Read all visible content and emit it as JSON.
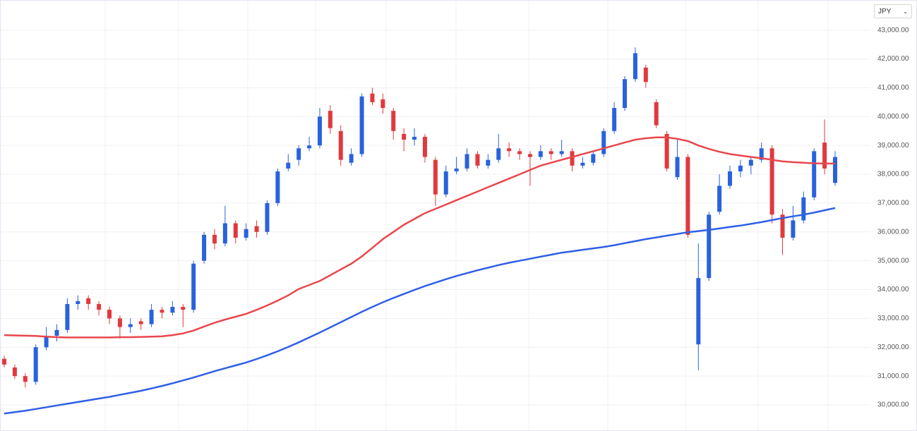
{
  "chart_data": {
    "type": "candlestick",
    "currency": "JPY",
    "up_color": "#2a62dc",
    "down_color": "#e0393e",
    "open": [
      31600,
      31300,
      31000,
      30800,
      32000,
      32400,
      32600,
      33500,
      33700,
      33500,
      33300,
      33000,
      32700,
      32900,
      32800,
      33300,
      33200,
      33400,
      33300,
      35000,
      35900,
      35600,
      36300,
      35800,
      36200,
      36000,
      37000,
      38200,
      38500,
      38900,
      39000,
      40200,
      39500,
      38400,
      38700,
      40800,
      40600,
      40200,
      39400,
      39200,
      39300,
      38500,
      37300,
      38100,
      38200,
      38700,
      38300,
      38500,
      38900,
      38800,
      38700,
      38600,
      38800,
      38700,
      38800,
      38300,
      38400,
      38700,
      39500,
      40300,
      41300,
      41700,
      40500,
      39400,
      37900,
      38600,
      32100,
      34400,
      36700,
      37600,
      38100,
      38300,
      38500,
      38900,
      36600,
      35800,
      36400,
      37200,
      39100,
      37700
    ],
    "high": [
      31700,
      31400,
      31100,
      32100,
      32700,
      32800,
      33700,
      33800,
      33800,
      33600,
      33400,
      33100,
      33000,
      33000,
      33500,
      33400,
      33600,
      33500,
      35000,
      36000,
      36100,
      36900,
      36400,
      36300,
      36400,
      37100,
      38200,
      38700,
      39000,
      39300,
      40300,
      40400,
      39700,
      38900,
      40800,
      41000,
      40800,
      40300,
      39600,
      39600,
      39400,
      38600,
      38300,
      38600,
      38900,
      38800,
      38700,
      39400,
      39100,
      38900,
      38800,
      39000,
      38900,
      39200,
      38900,
      38600,
      38800,
      39600,
      40500,
      41400,
      42400,
      41800,
      40600,
      39500,
      39200,
      38700,
      35600,
      36700,
      38000,
      38300,
      38500,
      38600,
      39100,
      39000,
      36800,
      36900,
      37400,
      38900,
      39900,
      38800
    ],
    "low": [
      31300,
      30900,
      30600,
      30700,
      31900,
      32200,
      32500,
      33300,
      33300,
      33100,
      32800,
      32300,
      32500,
      32600,
      32700,
      33000,
      33100,
      32700,
      33200,
      34900,
      35400,
      35500,
      35600,
      35700,
      35800,
      35900,
      36900,
      38100,
      38300,
      38800,
      38900,
      39400,
      38300,
      38300,
      38600,
      40400,
      40100,
      39200,
      38800,
      39000,
      38400,
      36900,
      37200,
      38000,
      38100,
      38200,
      38200,
      38400,
      38600,
      38500,
      37600,
      38500,
      38500,
      38600,
      38100,
      38200,
      38300,
      38600,
      39400,
      40200,
      41200,
      41000,
      39600,
      38100,
      37800,
      35800,
      31200,
      34300,
      36600,
      37500,
      37900,
      38000,
      38400,
      36300,
      35200,
      35700,
      36300,
      37100,
      38000,
      37600
    ],
    "close": [
      31400,
      31000,
      30800,
      32000,
      32400,
      32600,
      33500,
      33600,
      33500,
      33300,
      33000,
      32700,
      32800,
      32800,
      33300,
      33200,
      33400,
      33300,
      34900,
      35900,
      35600,
      36300,
      35800,
      36100,
      36000,
      37000,
      38100,
      38400,
      38900,
      39000,
      40000,
      39600,
      38500,
      38700,
      40700,
      40500,
      40300,
      39500,
      39200,
      39300,
      38600,
      37300,
      38100,
      38200,
      38700,
      38300,
      38500,
      38900,
      38800,
      38700,
      38600,
      38800,
      38700,
      38800,
      38300,
      38400,
      38700,
      39500,
      40300,
      41300,
      42200,
      41200,
      39700,
      38200,
      38600,
      35900,
      34400,
      36600,
      37600,
      38100,
      38300,
      38500,
      38900,
      36600,
      35800,
      36400,
      37200,
      38800,
      38200,
      38600
    ],
    "lines": [
      {
        "color": "#e8474c",
        "values": [
          32420,
          32410,
          32400,
          32390,
          32370,
          32350,
          32340,
          32340,
          32340,
          32340,
          32340,
          32350,
          32350,
          32360,
          32370,
          32380,
          32420,
          32480,
          32580,
          32720,
          32850,
          32960,
          33060,
          33160,
          33300,
          33450,
          33620,
          33800,
          34020,
          34160,
          34300,
          34500,
          34700,
          34900,
          35150,
          35450,
          35750,
          36000,
          36250,
          36450,
          36650,
          36800,
          36950,
          37100,
          37250,
          37400,
          37550,
          37700,
          37850,
          38000,
          38150,
          38300,
          38400,
          38500,
          38600,
          38700,
          38800,
          38900,
          39000,
          39100,
          39200,
          39250,
          39280,
          39280,
          39230,
          39150,
          39000,
          38880,
          38780,
          38700,
          38650,
          38600,
          38560,
          38500,
          38450,
          38420,
          38400,
          38380,
          38370,
          38370
        ]
      },
      {
        "color": "#2f5fe6",
        "values": [
          29700,
          29750,
          29800,
          29860,
          29920,
          29980,
          30040,
          30100,
          30160,
          30220,
          30280,
          30350,
          30420,
          30490,
          30570,
          30660,
          30750,
          30850,
          30950,
          31060,
          31170,
          31270,
          31370,
          31470,
          31590,
          31720,
          31860,
          32010,
          32170,
          32340,
          32510,
          32690,
          32870,
          33050,
          33230,
          33400,
          33560,
          33710,
          33850,
          33990,
          34120,
          34240,
          34360,
          34470,
          34570,
          34670,
          34760,
          34850,
          34930,
          35000,
          35070,
          35140,
          35210,
          35280,
          35330,
          35380,
          35430,
          35480,
          35540,
          35610,
          35680,
          35750,
          35810,
          35870,
          35930,
          35990,
          36030,
          36070,
          36120,
          36170,
          36220,
          36280,
          36340,
          36410,
          36480,
          36540,
          36600,
          36670,
          36750,
          36830
        ]
      }
    ],
    "ylim": [
      29120,
      44020
    ],
    "yticks": [
      {
        "value": 30000,
        "label": "30,000.00"
      },
      {
        "value": 31000,
        "label": "31,000.00"
      },
      {
        "value": 32000,
        "label": "32,000.00"
      },
      {
        "value": 33000,
        "label": "33,000.00"
      },
      {
        "value": 34000,
        "label": "34,000.00"
      },
      {
        "value": 35000,
        "label": "35,000.00"
      },
      {
        "value": 36000,
        "label": "36,000.00"
      },
      {
        "value": 37000,
        "label": "37,000.00"
      },
      {
        "value": 38000,
        "label": "38,000.00"
      },
      {
        "value": 39000,
        "label": "39,000.00"
      },
      {
        "value": 40000,
        "label": "40,000.00"
      },
      {
        "value": 41000,
        "label": "41,000.00"
      },
      {
        "value": 42000,
        "label": "42,000.00"
      },
      {
        "value": 43000,
        "label": "43,000.00"
      }
    ],
    "grid": true
  }
}
